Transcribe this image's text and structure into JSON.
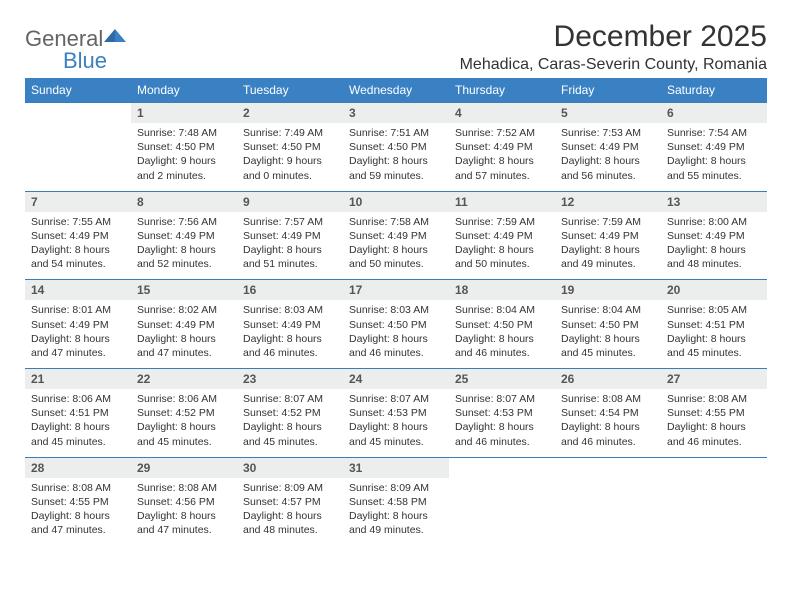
{
  "logo": {
    "general": "General",
    "blue": "Blue"
  },
  "title": "December 2025",
  "location": "Mehadica, Caras-Severin County, Romania",
  "brand_color": "#3a81c4",
  "gray_bg": "#eceded",
  "text_color": "#333333",
  "day_headers": [
    "Sunday",
    "Monday",
    "Tuesday",
    "Wednesday",
    "Thursday",
    "Friday",
    "Saturday"
  ],
  "weeks": [
    [
      {
        "num": "",
        "lines": []
      },
      {
        "num": "1",
        "lines": [
          "Sunrise: 7:48 AM",
          "Sunset: 4:50 PM",
          "Daylight: 9 hours",
          "and 2 minutes."
        ]
      },
      {
        "num": "2",
        "lines": [
          "Sunrise: 7:49 AM",
          "Sunset: 4:50 PM",
          "Daylight: 9 hours",
          "and 0 minutes."
        ]
      },
      {
        "num": "3",
        "lines": [
          "Sunrise: 7:51 AM",
          "Sunset: 4:50 PM",
          "Daylight: 8 hours",
          "and 59 minutes."
        ]
      },
      {
        "num": "4",
        "lines": [
          "Sunrise: 7:52 AM",
          "Sunset: 4:49 PM",
          "Daylight: 8 hours",
          "and 57 minutes."
        ]
      },
      {
        "num": "5",
        "lines": [
          "Sunrise: 7:53 AM",
          "Sunset: 4:49 PM",
          "Daylight: 8 hours",
          "and 56 minutes."
        ]
      },
      {
        "num": "6",
        "lines": [
          "Sunrise: 7:54 AM",
          "Sunset: 4:49 PM",
          "Daylight: 8 hours",
          "and 55 minutes."
        ]
      }
    ],
    [
      {
        "num": "7",
        "lines": [
          "Sunrise: 7:55 AM",
          "Sunset: 4:49 PM",
          "Daylight: 8 hours",
          "and 54 minutes."
        ]
      },
      {
        "num": "8",
        "lines": [
          "Sunrise: 7:56 AM",
          "Sunset: 4:49 PM",
          "Daylight: 8 hours",
          "and 52 minutes."
        ]
      },
      {
        "num": "9",
        "lines": [
          "Sunrise: 7:57 AM",
          "Sunset: 4:49 PM",
          "Daylight: 8 hours",
          "and 51 minutes."
        ]
      },
      {
        "num": "10",
        "lines": [
          "Sunrise: 7:58 AM",
          "Sunset: 4:49 PM",
          "Daylight: 8 hours",
          "and 50 minutes."
        ]
      },
      {
        "num": "11",
        "lines": [
          "Sunrise: 7:59 AM",
          "Sunset: 4:49 PM",
          "Daylight: 8 hours",
          "and 50 minutes."
        ]
      },
      {
        "num": "12",
        "lines": [
          "Sunrise: 7:59 AM",
          "Sunset: 4:49 PM",
          "Daylight: 8 hours",
          "and 49 minutes."
        ]
      },
      {
        "num": "13",
        "lines": [
          "Sunrise: 8:00 AM",
          "Sunset: 4:49 PM",
          "Daylight: 8 hours",
          "and 48 minutes."
        ]
      }
    ],
    [
      {
        "num": "14",
        "lines": [
          "Sunrise: 8:01 AM",
          "Sunset: 4:49 PM",
          "Daylight: 8 hours",
          "and 47 minutes."
        ]
      },
      {
        "num": "15",
        "lines": [
          "Sunrise: 8:02 AM",
          "Sunset: 4:49 PM",
          "Daylight: 8 hours",
          "and 47 minutes."
        ]
      },
      {
        "num": "16",
        "lines": [
          "Sunrise: 8:03 AM",
          "Sunset: 4:49 PM",
          "Daylight: 8 hours",
          "and 46 minutes."
        ]
      },
      {
        "num": "17",
        "lines": [
          "Sunrise: 8:03 AM",
          "Sunset: 4:50 PM",
          "Daylight: 8 hours",
          "and 46 minutes."
        ]
      },
      {
        "num": "18",
        "lines": [
          "Sunrise: 8:04 AM",
          "Sunset: 4:50 PM",
          "Daylight: 8 hours",
          "and 46 minutes."
        ]
      },
      {
        "num": "19",
        "lines": [
          "Sunrise: 8:04 AM",
          "Sunset: 4:50 PM",
          "Daylight: 8 hours",
          "and 45 minutes."
        ]
      },
      {
        "num": "20",
        "lines": [
          "Sunrise: 8:05 AM",
          "Sunset: 4:51 PM",
          "Daylight: 8 hours",
          "and 45 minutes."
        ]
      }
    ],
    [
      {
        "num": "21",
        "lines": [
          "Sunrise: 8:06 AM",
          "Sunset: 4:51 PM",
          "Daylight: 8 hours",
          "and 45 minutes."
        ]
      },
      {
        "num": "22",
        "lines": [
          "Sunrise: 8:06 AM",
          "Sunset: 4:52 PM",
          "Daylight: 8 hours",
          "and 45 minutes."
        ]
      },
      {
        "num": "23",
        "lines": [
          "Sunrise: 8:07 AM",
          "Sunset: 4:52 PM",
          "Daylight: 8 hours",
          "and 45 minutes."
        ]
      },
      {
        "num": "24",
        "lines": [
          "Sunrise: 8:07 AM",
          "Sunset: 4:53 PM",
          "Daylight: 8 hours",
          "and 45 minutes."
        ]
      },
      {
        "num": "25",
        "lines": [
          "Sunrise: 8:07 AM",
          "Sunset: 4:53 PM",
          "Daylight: 8 hours",
          "and 46 minutes."
        ]
      },
      {
        "num": "26",
        "lines": [
          "Sunrise: 8:08 AM",
          "Sunset: 4:54 PM",
          "Daylight: 8 hours",
          "and 46 minutes."
        ]
      },
      {
        "num": "27",
        "lines": [
          "Sunrise: 8:08 AM",
          "Sunset: 4:55 PM",
          "Daylight: 8 hours",
          "and 46 minutes."
        ]
      }
    ],
    [
      {
        "num": "28",
        "lines": [
          "Sunrise: 8:08 AM",
          "Sunset: 4:55 PM",
          "Daylight: 8 hours",
          "and 47 minutes."
        ]
      },
      {
        "num": "29",
        "lines": [
          "Sunrise: 8:08 AM",
          "Sunset: 4:56 PM",
          "Daylight: 8 hours",
          "and 47 minutes."
        ]
      },
      {
        "num": "30",
        "lines": [
          "Sunrise: 8:09 AM",
          "Sunset: 4:57 PM",
          "Daylight: 8 hours",
          "and 48 minutes."
        ]
      },
      {
        "num": "31",
        "lines": [
          "Sunrise: 8:09 AM",
          "Sunset: 4:58 PM",
          "Daylight: 8 hours",
          "and 49 minutes."
        ]
      },
      {
        "num": "",
        "lines": []
      },
      {
        "num": "",
        "lines": []
      },
      {
        "num": "",
        "lines": []
      }
    ]
  ]
}
